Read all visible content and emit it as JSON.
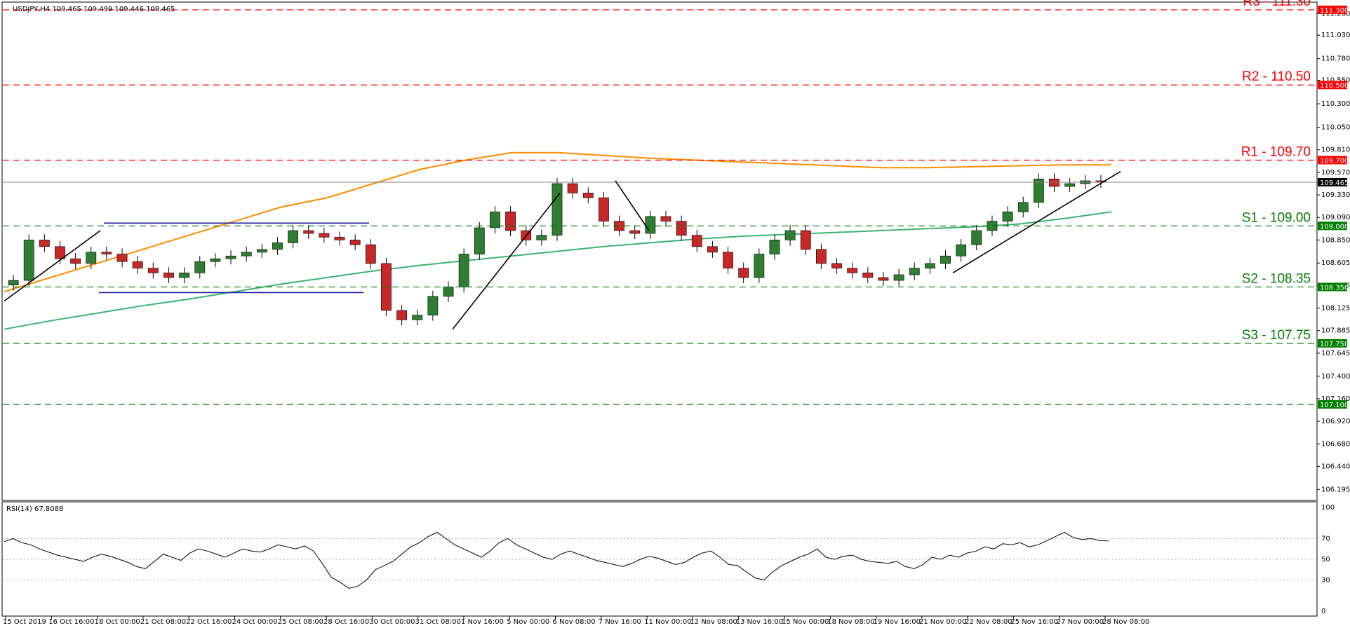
{
  "header": {
    "symbol_info": "USDJPY,H4  109.465 109.499 109.446 109.465",
    "rsi_info": "RSI(14) 67.8088"
  },
  "colors": {
    "resistance": "#ff0000",
    "support": "#007f00",
    "ma_fast": "#3cb371",
    "ma_slow": "#ff8c00",
    "bull_candle": "#2e7d32",
    "bear_candle": "#c62828",
    "channel": "#1a1aa6",
    "trendline": "#000000",
    "rsi_line": "#000000"
  },
  "chart_data": [
    {
      "type": "line",
      "title": "USDJPY,H4",
      "xlabel": "",
      "ylabel": "",
      "ylim": [
        106.1,
        111.33
      ],
      "x_ticks": [
        "15 Oct 2019",
        "16 Oct 16:00",
        "18 Oct 00:00",
        "21 Oct 08:00",
        "22 Oct 16:00",
        "24 Oct 00:00",
        "25 Oct 08:00",
        "28 Oct 16:00",
        "30 Oct 00:00",
        "31 Oct 08:00",
        "1 Nov 16:00",
        "5 Nov 00:00",
        "6 Nov 08:00",
        "7 Nov 16:00",
        "11 Nov 00:00",
        "12 Nov 08:00",
        "13 Nov 16:00",
        "15 Nov 00:00",
        "18 Nov 08:00",
        "19 Nov 16:00",
        "21 Nov 00:00",
        "22 Nov 08:00",
        "25 Nov 16:00",
        "27 Nov 00:00",
        "28 Nov 08:00"
      ],
      "y_ticks": [
        "111.260",
        "111.030",
        "110.780",
        "110.550",
        "110.300",
        "110.050",
        "109.810",
        "109.570",
        "109.330",
        "109.090",
        "108.850",
        "108.605",
        "108.365",
        "108.125",
        "107.885",
        "107.645",
        "107.400",
        "107.160",
        "106.920",
        "106.680",
        "106.440",
        "106.195"
      ],
      "price_labels": [
        {
          "value": 111.3,
          "text": "111.300",
          "kind": "resistance"
        },
        {
          "value": 110.5,
          "text": "110.500",
          "kind": "resistance"
        },
        {
          "value": 109.7,
          "text": "109.700",
          "kind": "resistance"
        },
        {
          "value": 109.465,
          "text": "109.465",
          "kind": "current"
        },
        {
          "value": 109.0,
          "text": "109.000",
          "kind": "support"
        },
        {
          "value": 108.35,
          "text": "108.350",
          "kind": "support"
        },
        {
          "value": 107.75,
          "text": "107.750",
          "kind": "support"
        },
        {
          "value": 107.1,
          "text": "107.100",
          "kind": "support"
        }
      ],
      "levels": [
        {
          "label": "R3 - 111.30",
          "value": 111.3,
          "kind": "resistance"
        },
        {
          "label": "R2 - 110.50",
          "value": 110.5,
          "kind": "resistance"
        },
        {
          "label": "R1 - 109.70",
          "value": 109.7,
          "kind": "resistance"
        },
        {
          "label": "S1 - 109.00",
          "value": 109.0,
          "kind": "support"
        },
        {
          "label": "S2 - 108.35",
          "value": 108.35,
          "kind": "support"
        },
        {
          "label": "S3 - 107.75",
          "value": 107.75,
          "kind": "support"
        },
        {
          "label": "",
          "value": 107.1,
          "kind": "support"
        }
      ],
      "current_price": 109.465,
      "series": [
        {
          "values": [
            108.3,
            108.45,
            108.6,
            108.75,
            108.9,
            109.05,
            109.2,
            109.3,
            109.45,
            109.6,
            109.7,
            109.78,
            109.78,
            109.75,
            109.72,
            109.7,
            109.68,
            109.66,
            109.64,
            109.62,
            109.62,
            109.63,
            109.64,
            109.65,
            109.65
          ]
        },
        {
          "values": [
            107.9,
            107.99,
            108.07,
            108.15,
            108.22,
            108.3,
            108.38,
            108.45,
            108.52,
            108.58,
            108.63,
            108.68,
            108.73,
            108.78,
            108.82,
            108.86,
            108.89,
            108.91,
            108.93,
            108.95,
            108.97,
            108.99,
            109.02,
            109.08,
            109.15
          ]
        }
      ],
      "candles_close": [
        108.42,
        108.85,
        108.78,
        108.65,
        108.6,
        108.72,
        108.7,
        108.62,
        108.55,
        108.5,
        108.45,
        108.5,
        108.62,
        108.65,
        108.68,
        108.72,
        108.75,
        108.82,
        108.95,
        108.92,
        108.88,
        108.85,
        108.8,
        108.6,
        108.1,
        108.0,
        108.05,
        108.25,
        108.35,
        108.7,
        108.98,
        109.15,
        108.95,
        108.85,
        108.9,
        109.45,
        109.35,
        109.3,
        109.05,
        108.95,
        108.92,
        109.1,
        109.05,
        108.9,
        108.78,
        108.72,
        108.55,
        108.45,
        108.7,
        108.85,
        108.95,
        108.75,
        108.6,
        108.55,
        108.5,
        108.45,
        108.42,
        108.48,
        108.55,
        108.6,
        108.68,
        108.8,
        108.95,
        109.05,
        109.15,
        109.25,
        109.5,
        109.42,
        109.45,
        109.48,
        109.465
      ]
    },
    {
      "type": "line",
      "title": "RSI(14) 67.8088",
      "ylim": [
        0,
        100
      ],
      "y_ticks": [
        "100",
        "70",
        "50",
        "30",
        "0"
      ],
      "values": [
        67,
        70,
        66,
        64,
        60,
        57,
        54,
        52,
        50,
        48,
        52,
        55,
        53,
        50,
        47,
        43,
        41,
        48,
        55,
        52,
        49,
        56,
        60,
        58,
        55,
        52,
        56,
        60,
        58,
        57,
        60,
        64,
        62,
        60,
        63,
        58,
        46,
        33,
        28,
        22,
        24,
        30,
        40,
        44,
        48,
        55,
        62,
        66,
        72,
        76,
        70,
        64,
        60,
        56,
        52,
        58,
        66,
        70,
        64,
        60,
        56,
        52,
        50,
        55,
        58,
        55,
        52,
        49,
        47,
        45,
        43,
        46,
        50,
        53,
        51,
        48,
        45,
        47,
        52,
        56,
        58,
        52,
        45,
        44,
        38,
        32,
        30,
        38,
        44,
        48,
        52,
        55,
        60,
        52,
        50,
        53,
        54,
        50,
        48,
        47,
        46,
        48,
        43,
        41,
        45,
        52,
        50,
        54,
        52,
        56,
        58,
        62,
        60,
        65,
        64,
        66,
        62,
        64,
        68,
        72,
        76,
        71,
        69,
        70,
        68,
        67.8
      ]
    }
  ]
}
